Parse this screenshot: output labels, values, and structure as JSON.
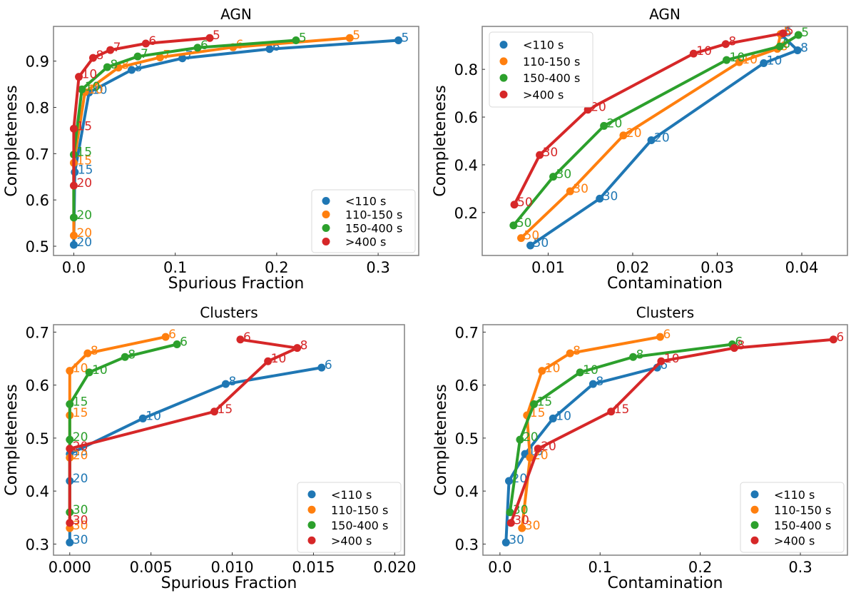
{
  "colors": {
    "<110 s": "#1f77b4",
    "110-150 s": "#ff7f0e",
    "150-400 s": "#2ca02c",
    ">400 s": "#d62728"
  },
  "chart_data": [
    {
      "type": "line",
      "title": "AGN",
      "xlabel": "Spurious Fraction",
      "ylabel": "Completeness",
      "xlim": [
        -0.02,
        0.34
      ],
      "ylim": [
        0.48,
        0.975
      ],
      "xticks": [
        0.0,
        0.1,
        0.2,
        0.3
      ],
      "xtick_labels": [
        "0.0",
        "0.1",
        "0.2",
        "0.3"
      ],
      "yticks": [
        0.5,
        0.6,
        0.7,
        0.8,
        0.9
      ],
      "ytick_labels": [
        "0.5",
        "0.6",
        "0.7",
        "0.8",
        "0.9"
      ],
      "legend_position": "lower-right",
      "series": [
        {
          "name": "<110 s",
          "labels": [
            "5",
            "6",
            "7",
            "8",
            "10",
            "15",
            "20"
          ],
          "x": [
            0.32,
            0.193,
            0.107,
            0.057,
            0.015,
            0.001,
            0.0
          ],
          "y": [
            0.945,
            0.926,
            0.906,
            0.881,
            0.832,
            0.66,
            0.503
          ]
        },
        {
          "name": "110-150 s",
          "labels": [
            "5",
            "6",
            "7",
            "8",
            "10",
            "15",
            "20"
          ],
          "x": [
            0.272,
            0.157,
            0.085,
            0.044,
            0.011,
            0.0,
            0.0
          ],
          "y": [
            0.95,
            0.93,
            0.908,
            0.886,
            0.833,
            0.68,
            0.523
          ]
        },
        {
          "name": "150-400 s",
          "labels": [
            "5",
            "6",
            "7",
            "8",
            "10",
            "15",
            "20"
          ],
          "x": [
            0.219,
            0.122,
            0.063,
            0.033,
            0.008,
            0.0,
            0.0
          ],
          "y": [
            0.945,
            0.929,
            0.91,
            0.887,
            0.839,
            0.698,
            0.562
          ]
        },
        {
          "name": ">400 s",
          "labels": [
            "5",
            "6",
            "7",
            "8",
            "10",
            "15",
            "20"
          ],
          "x": [
            0.134,
            0.071,
            0.036,
            0.019,
            0.005,
            0.0,
            0.0
          ],
          "y": [
            0.95,
            0.938,
            0.924,
            0.907,
            0.866,
            0.754,
            0.631
          ]
        }
      ]
    },
    {
      "type": "line",
      "title": "AGN",
      "xlabel": "Contamination",
      "ylabel": "Completeness",
      "xlim": [
        0.0022,
        0.0454
      ],
      "ylim": [
        0.02,
        0.98
      ],
      "xticks": [
        0.01,
        0.02,
        0.03,
        0.04
      ],
      "xtick_labels": [
        "0.01",
        "0.02",
        "0.03",
        "0.04"
      ],
      "yticks": [
        0.2,
        0.4,
        0.6,
        0.8
      ],
      "ytick_labels": [
        "0.2",
        "0.4",
        "0.6",
        "0.8"
      ],
      "legend_position": "upper-left",
      "series": [
        {
          "name": "<110 s",
          "labels": [
            "5",
            "8",
            "10",
            "20",
            "30",
            "50"
          ],
          "x": [
            0.0376,
            0.0395,
            0.0355,
            0.0222,
            0.0161,
            0.0079
          ],
          "y": [
            0.944,
            0.88,
            0.826,
            0.503,
            0.258,
            0.062
          ]
        },
        {
          "name": "110-150 s",
          "labels": [
            "5",
            "8",
            "10",
            "20",
            "30",
            "50"
          ],
          "x": [
            0.0375,
            0.0371,
            0.0326,
            0.0189,
            0.0126,
            0.0068
          ],
          "y": [
            0.948,
            0.886,
            0.83,
            0.523,
            0.289,
            0.093
          ]
        },
        {
          "name": "150-400 s",
          "labels": [
            "5",
            "8",
            "10",
            "20",
            "30",
            "50"
          ],
          "x": [
            0.0396,
            0.0374,
            0.0311,
            0.0166,
            0.0106,
            0.0059
          ],
          "y": [
            0.944,
            0.896,
            0.839,
            0.563,
            0.35,
            0.146
          ]
        },
        {
          "name": ">400 s",
          "labels": [
            "5",
            "8",
            "10",
            "20",
            "30",
            "50"
          ],
          "x": [
            0.0378,
            0.031,
            0.0272,
            0.0147,
            0.009,
            0.006
          ],
          "y": [
            0.951,
            0.906,
            0.866,
            0.631,
            0.441,
            0.233
          ]
        }
      ]
    },
    {
      "type": "line",
      "title": "Clusters",
      "xlabel": "Spurious Fraction",
      "ylabel": "Completeness",
      "xlim": [
        -0.001,
        0.0206
      ],
      "ylim": [
        0.279,
        0.714
      ],
      "xticks": [
        0.0,
        0.005,
        0.01,
        0.015,
        0.02
      ],
      "xtick_labels": [
        "0.000",
        "0.005",
        "0.010",
        "0.015",
        "0.020"
      ],
      "yticks": [
        0.3,
        0.4,
        0.5,
        0.6,
        0.7
      ],
      "ytick_labels": [
        "0.3",
        "0.4",
        "0.5",
        "0.6",
        "0.7"
      ],
      "legend_position": "lower-right",
      "series": [
        {
          "name": "<110 s",
          "labels": [
            "6",
            "8",
            "10",
            "15",
            "20",
            "30"
          ],
          "x": [
            0.0155,
            0.0096,
            0.0045,
            0.0,
            0.0,
            0.0
          ],
          "y": [
            0.633,
            0.602,
            0.537,
            0.47,
            0.419,
            0.303
          ]
        },
        {
          "name": "110-150 s",
          "labels": [
            "6",
            "8",
            "10",
            "15",
            "20",
            "30"
          ],
          "x": [
            0.0059,
            0.0011,
            0.0,
            0.0,
            0.0,
            0.0
          ],
          "y": [
            0.691,
            0.66,
            0.627,
            0.543,
            0.463,
            0.33
          ]
        },
        {
          "name": "150-400 s",
          "labels": [
            "6",
            "8",
            "10",
            "15",
            "20",
            "30"
          ],
          "x": [
            0.0066,
            0.0034,
            0.0012,
            0.0,
            0.0,
            0.0
          ],
          "y": [
            0.677,
            0.653,
            0.624,
            0.564,
            0.497,
            0.36
          ]
        },
        {
          "name": ">400 s",
          "labels": [
            "6",
            "8",
            "10",
            "15",
            "20",
            "30"
          ],
          "x": [
            0.0105,
            0.014,
            0.0122,
            0.0089,
            0.0,
            0.0
          ],
          "y": [
            0.686,
            0.67,
            0.645,
            0.55,
            0.48,
            0.34
          ]
        }
      ]
    },
    {
      "type": "line",
      "title": "Clusters",
      "xlabel": "Contamination",
      "ylabel": "Completeness",
      "xlim": [
        -0.017,
        0.347
      ],
      "ylim": [
        0.279,
        0.714
      ],
      "xticks": [
        0.0,
        0.1,
        0.2,
        0.3
      ],
      "xtick_labels": [
        "0.0",
        "0.1",
        "0.2",
        "0.3"
      ],
      "yticks": [
        0.3,
        0.4,
        0.5,
        0.6,
        0.7
      ],
      "ytick_labels": [
        "0.3",
        "0.4",
        "0.5",
        "0.6",
        "0.7"
      ],
      "legend_position": "lower-right",
      "series": [
        {
          "name": "<110 s",
          "labels": [
            "6",
            "8",
            "10",
            "15",
            "20",
            "30"
          ],
          "x": [
            0.157,
            0.093,
            0.053,
            0.025,
            0.009,
            0.006
          ],
          "y": [
            0.633,
            0.602,
            0.537,
            0.47,
            0.419,
            0.303
          ]
        },
        {
          "name": "110-150 s",
          "labels": [
            "6",
            "8",
            "10",
            "15",
            "20",
            "30"
          ],
          "x": [
            0.16,
            0.07,
            0.042,
            0.027,
            0.03,
            0.022
          ],
          "y": [
            0.691,
            0.66,
            0.627,
            0.543,
            0.463,
            0.33
          ]
        },
        {
          "name": "150-400 s",
          "labels": [
            "6",
            "8",
            "10",
            "15",
            "20",
            "30"
          ],
          "x": [
            0.232,
            0.133,
            0.08,
            0.034,
            0.02,
            0.01
          ],
          "y": [
            0.677,
            0.653,
            0.624,
            0.564,
            0.497,
            0.36
          ]
        },
        {
          "name": ">400 s",
          "labels": [
            "6",
            "8",
            "10",
            "15",
            "20",
            "30"
          ],
          "x": [
            0.333,
            0.234,
            0.161,
            0.111,
            0.038,
            0.011
          ],
          "y": [
            0.686,
            0.67,
            0.645,
            0.55,
            0.48,
            0.34
          ]
        }
      ]
    }
  ]
}
